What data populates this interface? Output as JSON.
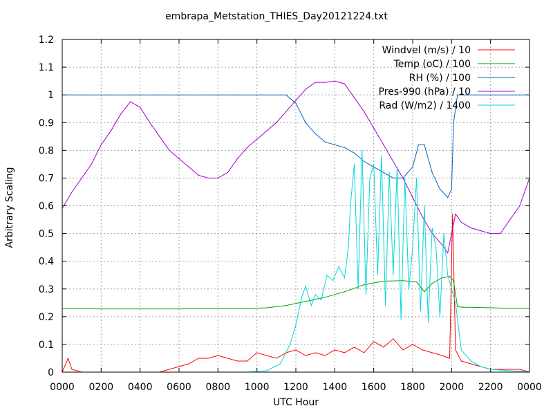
{
  "chart_data": {
    "type": "line",
    "title": "embrapa_Metstation_THIES_Day20121224.txt",
    "xlabel": "UTC Hour",
    "ylabel": "Arbitrary Scaling",
    "xlim": [
      0,
      24
    ],
    "ylim": [
      0,
      1.2
    ],
    "grid": true,
    "legend_position": "top-right",
    "x_tick_labels": [
      "0000",
      "0200",
      "0400",
      "0600",
      "0800",
      "1000",
      "1200",
      "1400",
      "1600",
      "1800",
      "2000",
      "2200",
      "0000"
    ],
    "y_tick_labels": [
      "0",
      "0.1",
      "0.2",
      "0.3",
      "0.4",
      "0.5",
      "0.6",
      "0.7",
      "0.8",
      "0.9",
      "1",
      "1.1",
      "1.2"
    ],
    "series": [
      {
        "name": "Windvel (m/s) / 10",
        "color": "#ff0000",
        "x": [
          0,
          0.3,
          0.5,
          1.0,
          3.0,
          3.5,
          5.0,
          5.5,
          6.0,
          6.5,
          7.0,
          7.5,
          8.0,
          8.5,
          9.0,
          9.5,
          10.0,
          10.5,
          11.0,
          11.5,
          12.0,
          12.5,
          13.0,
          13.5,
          14.0,
          14.5,
          15.0,
          15.5,
          16.0,
          16.5,
          17.0,
          17.5,
          18.0,
          18.5,
          19.0,
          19.5,
          19.9,
          20.05,
          20.2,
          20.5,
          21.0,
          21.5,
          22.0,
          22.5,
          23.0,
          23.5,
          24.0
        ],
        "y": [
          0.0,
          0.05,
          0.01,
          0.0,
          0.0,
          0.0,
          0.0,
          0.01,
          0.02,
          0.03,
          0.05,
          0.05,
          0.06,
          0.05,
          0.04,
          0.04,
          0.07,
          0.06,
          0.05,
          0.07,
          0.08,
          0.06,
          0.07,
          0.06,
          0.08,
          0.07,
          0.09,
          0.07,
          0.11,
          0.09,
          0.12,
          0.08,
          0.1,
          0.08,
          0.07,
          0.06,
          0.05,
          0.57,
          0.08,
          0.04,
          0.03,
          0.02,
          0.01,
          0.01,
          0.01,
          0.01,
          0.0
        ]
      },
      {
        "name": "Temp (oC) / 100",
        "color": "#00a000",
        "x": [
          0,
          2,
          4,
          6,
          8,
          9.5,
          10.5,
          11.5,
          12.5,
          13.5,
          14.5,
          15.5,
          16.5,
          17.5,
          18.2,
          18.6,
          19.0,
          19.5,
          19.9,
          20.1,
          20.3,
          20.6,
          21,
          22,
          23,
          24
        ],
        "y": [
          0.23,
          0.228,
          0.228,
          0.228,
          0.229,
          0.229,
          0.232,
          0.24,
          0.255,
          0.27,
          0.29,
          0.315,
          0.328,
          0.33,
          0.325,
          0.29,
          0.32,
          0.34,
          0.345,
          0.33,
          0.236,
          0.234,
          0.234,
          0.232,
          0.23,
          0.23
        ]
      },
      {
        "name": "RH (%) / 100",
        "color": "#0060c0",
        "x": [
          0,
          5,
          10,
          11.5,
          12,
          12.5,
          13,
          13.5,
          14,
          14.5,
          15,
          15.5,
          16,
          16.5,
          17,
          17.5,
          18,
          18.3,
          18.6,
          19,
          19.4,
          19.8,
          20,
          20.1,
          20.3,
          24
        ],
        "y": [
          1.0,
          1.0,
          1.0,
          1.0,
          0.97,
          0.9,
          0.86,
          0.83,
          0.82,
          0.81,
          0.79,
          0.76,
          0.74,
          0.72,
          0.7,
          0.7,
          0.74,
          0.82,
          0.82,
          0.72,
          0.66,
          0.63,
          0.66,
          0.9,
          1.0,
          1.0
        ]
      },
      {
        "name": "Pres-990 (hPa) / 10",
        "color": "#a000d0",
        "x": [
          0,
          0.5,
          1,
          1.5,
          2,
          2.5,
          3,
          3.5,
          4,
          4.5,
          5,
          5.5,
          6,
          6.5,
          7,
          7.5,
          8,
          8.5,
          9,
          9.5,
          10,
          10.5,
          11,
          11.5,
          12,
          12.5,
          13,
          13.5,
          14,
          14.5,
          15,
          15.5,
          16,
          16.5,
          17,
          17.5,
          18,
          18.5,
          19,
          19.5,
          19.8,
          20.2,
          20.5,
          21,
          21.5,
          22,
          22.5,
          23,
          23.5,
          24
        ],
        "y": [
          0.59,
          0.65,
          0.7,
          0.75,
          0.82,
          0.87,
          0.93,
          0.975,
          0.955,
          0.9,
          0.85,
          0.8,
          0.77,
          0.74,
          0.71,
          0.7,
          0.7,
          0.72,
          0.77,
          0.81,
          0.84,
          0.87,
          0.9,
          0.94,
          0.98,
          1.02,
          1.045,
          1.045,
          1.05,
          1.04,
          0.99,
          0.94,
          0.88,
          0.82,
          0.76,
          0.7,
          0.63,
          0.56,
          0.5,
          0.46,
          0.43,
          0.57,
          0.54,
          0.52,
          0.51,
          0.5,
          0.5,
          0.55,
          0.6,
          0.7
        ]
      },
      {
        "name": "Rad (W/m2) / 1400",
        "color": "#00d8d8",
        "x": [
          0,
          5,
          9.5,
          10.5,
          11.2,
          11.7,
          12.0,
          12.3,
          12.5,
          12.8,
          13.0,
          13.3,
          13.6,
          13.9,
          14.2,
          14.5,
          14.7,
          14.8,
          15.0,
          15.2,
          15.4,
          15.6,
          15.8,
          16.0,
          16.2,
          16.4,
          16.6,
          16.8,
          17.0,
          17.2,
          17.4,
          17.6,
          17.8,
          18.0,
          18.2,
          18.4,
          18.6,
          18.8,
          19.0,
          19.2,
          19.4,
          19.6,
          19.8,
          20.0,
          20.2,
          20.5,
          21,
          21.5,
          22,
          24
        ],
        "y": [
          0.0,
          0.0,
          0.0,
          0.005,
          0.03,
          0.1,
          0.17,
          0.27,
          0.31,
          0.24,
          0.28,
          0.26,
          0.35,
          0.33,
          0.38,
          0.34,
          0.45,
          0.6,
          0.75,
          0.3,
          0.8,
          0.28,
          0.7,
          0.75,
          0.35,
          0.78,
          0.24,
          0.72,
          0.35,
          0.74,
          0.19,
          0.7,
          0.3,
          0.45,
          0.7,
          0.22,
          0.6,
          0.18,
          0.52,
          0.45,
          0.2,
          0.5,
          0.35,
          0.3,
          0.25,
          0.08,
          0.04,
          0.02,
          0.01,
          0.0
        ]
      }
    ]
  }
}
